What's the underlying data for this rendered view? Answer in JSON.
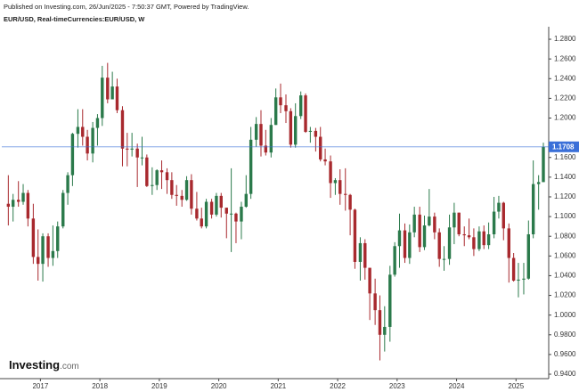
{
  "header": {
    "published": "Published on Investing.com, 26/Jun/2025 - 7:50:37 GMT, Powered by TradingView.",
    "symbol": "EUR/USD, Real-timeCurrencies:EUR/USD, W"
  },
  "logo": {
    "brand": "Investing",
    "suffix": ".com"
  },
  "chart_data": {
    "type": "candlestick",
    "up_color": "#2b7a4b",
    "down_color": "#a8292e",
    "last_price_color": "#3a6fd8",
    "grid": false,
    "xlim": [
      2016.35,
      2025.55
    ],
    "xticks": [
      2017,
      2018,
      2019,
      2020,
      2021,
      2022,
      2023,
      2024,
      2025
    ],
    "ylim": [
      0.9355,
      1.2927
    ],
    "yticks": [
      {
        "value": 0.94,
        "label": "0.9400"
      },
      {
        "value": 0.96,
        "label": "0.9600"
      },
      {
        "value": 0.98,
        "label": "0.9800"
      },
      {
        "value": 1.0,
        "label": "1.0000"
      },
      {
        "value": 1.02,
        "label": "1.0200"
      },
      {
        "value": 1.04,
        "label": "1.0400"
      },
      {
        "value": 1.06,
        "label": "1.0600"
      },
      {
        "value": 1.08,
        "label": "1.0800"
      },
      {
        "value": 1.1,
        "label": "1.1000"
      },
      {
        "value": 1.12,
        "label": "1.1200"
      },
      {
        "value": 1.14,
        "label": "1.1400"
      },
      {
        "value": 1.16,
        "label": "1.1600"
      },
      {
        "value": 1.2,
        "label": "1.2000"
      },
      {
        "value": 1.22,
        "label": "1.2200"
      },
      {
        "value": 1.24,
        "label": "1.2400"
      },
      {
        "value": 1.26,
        "label": "1.2600"
      },
      {
        "value": 1.28,
        "label": "1.2800"
      }
    ],
    "last_price": 1.1708,
    "x": [
      2016.46,
      2016.54,
      2016.63,
      2016.71,
      2016.79,
      2016.88,
      2016.96,
      2017.04,
      2017.13,
      2017.21,
      2017.29,
      2017.38,
      2017.46,
      2017.54,
      2017.63,
      2017.71,
      2017.79,
      2017.88,
      2017.96,
      2018.04,
      2018.13,
      2018.21,
      2018.29,
      2018.38,
      2018.46,
      2018.54,
      2018.63,
      2018.71,
      2018.79,
      2018.88,
      2018.96,
      2019.04,
      2019.13,
      2019.21,
      2019.29,
      2019.38,
      2019.46,
      2019.54,
      2019.63,
      2019.71,
      2019.79,
      2019.88,
      2019.96,
      2020.04,
      2020.13,
      2020.21,
      2020.29,
      2020.38,
      2020.46,
      2020.54,
      2020.63,
      2020.71,
      2020.79,
      2020.88,
      2020.96,
      2021.04,
      2021.13,
      2021.21,
      2021.29,
      2021.38,
      2021.46,
      2021.54,
      2021.63,
      2021.71,
      2021.79,
      2021.88,
      2021.96,
      2022.04,
      2022.13,
      2022.21,
      2022.29,
      2022.38,
      2022.46,
      2022.54,
      2022.63,
      2022.71,
      2022.79,
      2022.88,
      2022.96,
      2023.04,
      2023.13,
      2023.21,
      2023.29,
      2023.38,
      2023.46,
      2023.54,
      2023.63,
      2023.71,
      2023.79,
      2023.88,
      2023.96,
      2024.04,
      2024.13,
      2024.21,
      2024.29,
      2024.38,
      2024.46,
      2024.54,
      2024.63,
      2024.71,
      2024.79,
      2024.88,
      2024.96,
      2025.04,
      2025.13,
      2025.21,
      2025.29,
      2025.38,
      2025.46
    ],
    "open": [
      1.113,
      1.11,
      1.117,
      1.115,
      1.124,
      1.098,
      1.059,
      1.052,
      1.08,
      1.058,
      1.065,
      1.09,
      1.124,
      1.142,
      1.184,
      1.191,
      1.181,
      1.164,
      1.19,
      1.2,
      1.241,
      1.219,
      1.232,
      1.208,
      1.169,
      1.168,
      1.169,
      1.16,
      1.16,
      1.131,
      1.132,
      1.147,
      1.145,
      1.137,
      1.122,
      1.121,
      1.117,
      1.137,
      1.108,
      1.098,
      1.09,
      1.115,
      1.102,
      1.121,
      1.109,
      1.103,
      1.103,
      1.095,
      1.11,
      1.123,
      1.178,
      1.194,
      1.172,
      1.165,
      1.193,
      1.221,
      1.213,
      1.207,
      1.173,
      1.202,
      1.223,
      1.186,
      1.187,
      1.181,
      1.158,
      1.156,
      1.134,
      1.137,
      1.123,
      1.122,
      1.107,
      1.054,
      1.073,
      1.048,
      1.022,
      1.005,
      0.98,
      0.988,
      1.041,
      1.07,
      1.086,
      1.058,
      1.084,
      1.102,
      1.069,
      1.091,
      1.1,
      1.084,
      1.057,
      1.057,
      1.089,
      1.104,
      1.082,
      1.081,
      1.079,
      1.067,
      1.085,
      1.071,
      1.082,
      1.105,
      1.114,
      1.088,
      1.058,
      1.035,
      1.036,
      1.037,
      1.082,
      1.133,
      1.135
    ],
    "high": [
      1.142,
      1.123,
      1.136,
      1.133,
      1.127,
      1.113,
      1.087,
      1.083,
      1.083,
      1.091,
      1.095,
      1.127,
      1.145,
      1.185,
      1.209,
      1.209,
      1.188,
      1.196,
      1.204,
      1.253,
      1.256,
      1.247,
      1.24,
      1.212,
      1.185,
      1.185,
      1.174,
      1.181,
      1.163,
      1.15,
      1.148,
      1.157,
      1.149,
      1.145,
      1.132,
      1.127,
      1.141,
      1.143,
      1.125,
      1.109,
      1.118,
      1.118,
      1.124,
      1.124,
      1.109,
      1.149,
      1.104,
      1.115,
      1.142,
      1.191,
      1.201,
      1.208,
      1.188,
      1.2,
      1.23,
      1.235,
      1.224,
      1.21,
      1.215,
      1.227,
      1.225,
      1.191,
      1.19,
      1.191,
      1.169,
      1.162,
      1.139,
      1.148,
      1.149,
      1.123,
      1.108,
      1.079,
      1.077,
      1.048,
      1.037,
      1.02,
      1.009,
      1.05,
      1.074,
      1.103,
      1.093,
      1.092,
      1.11,
      1.11,
      1.101,
      1.128,
      1.104,
      1.088,
      1.07,
      1.102,
      1.114,
      1.104,
      1.09,
      1.098,
      1.088,
      1.09,
      1.091,
      1.094,
      1.12,
      1.121,
      1.115,
      1.093,
      1.063,
      1.053,
      1.053,
      1.096,
      1.157,
      1.142,
      1.175
    ],
    "low": [
      1.091,
      1.095,
      1.11,
      1.112,
      1.09,
      1.052,
      1.035,
      1.034,
      1.049,
      1.05,
      1.058,
      1.088,
      1.112,
      1.131,
      1.17,
      1.172,
      1.157,
      1.155,
      1.172,
      1.192,
      1.215,
      1.221,
      1.205,
      1.151,
      1.151,
      1.161,
      1.13,
      1.152,
      1.13,
      1.122,
      1.127,
      1.128,
      1.123,
      1.118,
      1.111,
      1.11,
      1.116,
      1.102,
      1.096,
      1.088,
      1.088,
      1.098,
      1.1,
      1.099,
      1.078,
      1.064,
      1.073,
      1.077,
      1.109,
      1.118,
      1.171,
      1.161,
      1.162,
      1.16,
      1.193,
      1.205,
      1.195,
      1.17,
      1.17,
      1.199,
      1.185,
      1.175,
      1.166,
      1.156,
      1.152,
      1.119,
      1.122,
      1.112,
      1.106,
      1.081,
      1.047,
      1.035,
      1.036,
      0.995,
      0.99,
      0.954,
      0.963,
      0.973,
      1.039,
      1.048,
      1.053,
      1.052,
      1.079,
      1.064,
      1.066,
      1.09,
      1.077,
      1.049,
      1.045,
      1.051,
      1.072,
      1.08,
      1.07,
      1.077,
      1.06,
      1.065,
      1.067,
      1.067,
      1.078,
      1.098,
      1.076,
      1.033,
      1.034,
      1.018,
      1.021,
      1.036,
      1.078,
      1.107,
      1.135
    ],
    "close": [
      1.11,
      1.117,
      1.115,
      1.124,
      1.098,
      1.059,
      1.052,
      1.08,
      1.058,
      1.065,
      1.09,
      1.124,
      1.142,
      1.184,
      1.191,
      1.181,
      1.164,
      1.19,
      1.2,
      1.241,
      1.219,
      1.232,
      1.208,
      1.169,
      1.168,
      1.169,
      1.16,
      1.16,
      1.131,
      1.132,
      1.147,
      1.145,
      1.137,
      1.122,
      1.121,
      1.117,
      1.137,
      1.108,
      1.098,
      1.09,
      1.115,
      1.102,
      1.121,
      1.109,
      1.103,
      1.103,
      1.095,
      1.11,
      1.123,
      1.178,
      1.194,
      1.172,
      1.165,
      1.193,
      1.221,
      1.213,
      1.207,
      1.173,
      1.202,
      1.223,
      1.186,
      1.187,
      1.181,
      1.158,
      1.156,
      1.134,
      1.137,
      1.123,
      1.122,
      1.107,
      1.054,
      1.073,
      1.048,
      1.022,
      1.005,
      0.98,
      0.988,
      1.041,
      1.07,
      1.086,
      1.058,
      1.084,
      1.102,
      1.069,
      1.091,
      1.1,
      1.084,
      1.057,
      1.057,
      1.089,
      1.104,
      1.082,
      1.081,
      1.079,
      1.067,
      1.085,
      1.071,
      1.082,
      1.105,
      1.114,
      1.088,
      1.058,
      1.035,
      1.036,
      1.037,
      1.082,
      1.133,
      1.135,
      1.1708
    ]
  }
}
